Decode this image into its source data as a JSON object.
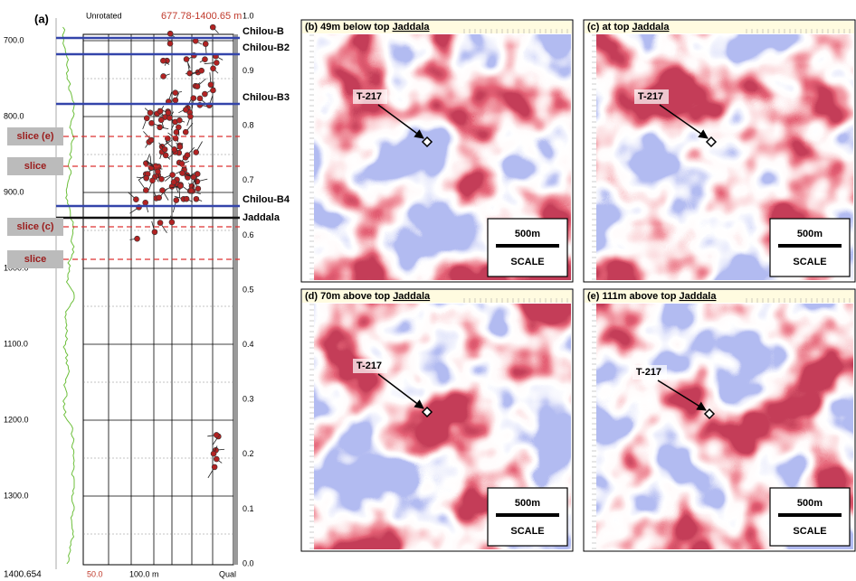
{
  "panel_a": {
    "label": "(a)",
    "header_left": "Unrotated",
    "header_range": "677.78-1400.65 m",
    "depth_labels": [
      "700.0",
      "800.0",
      "900.0",
      "1000.0",
      "1100.0",
      "1200.0",
      "1300.0"
    ],
    "depth_bottom": "1400.654",
    "scale_labels": [
      "1.0",
      "0.9",
      "0.8",
      "0.7",
      "0.6",
      "0.5",
      "0.4",
      "0.3",
      "0.2",
      "0.1",
      "0.0"
    ],
    "horizons": [
      "Chilou-B",
      "Chilou-B2",
      "Chilou-B3",
      "Chilou-B4",
      "Jaddala"
    ],
    "slices": [
      "slice (e)",
      "slice",
      "slice (c)",
      "slice"
    ],
    "footer_left": "50.0",
    "footer_mid": "100.0 m",
    "footer_right": "Qual"
  },
  "panels": [
    {
      "title": "(b) 49m below top ",
      "horizon": "Jaddala",
      "well": "T-217",
      "scale_bar": "500m",
      "scale_word": "SCALE"
    },
    {
      "title": "(c) at top ",
      "horizon": "Jaddala",
      "well": "T-217",
      "scale_bar": "500m",
      "scale_word": "SCALE"
    },
    {
      "title": "(d) 70m above top ",
      "horizon": "Jaddala",
      "well": "T-217",
      "scale_bar": "500m",
      "scale_word": "SCALE"
    },
    {
      "title": "(e) 111m above top ",
      "horizon": "Jaddala",
      "well": "T-217",
      "scale_bar": "500m",
      "scale_word": "SCALE"
    }
  ]
}
